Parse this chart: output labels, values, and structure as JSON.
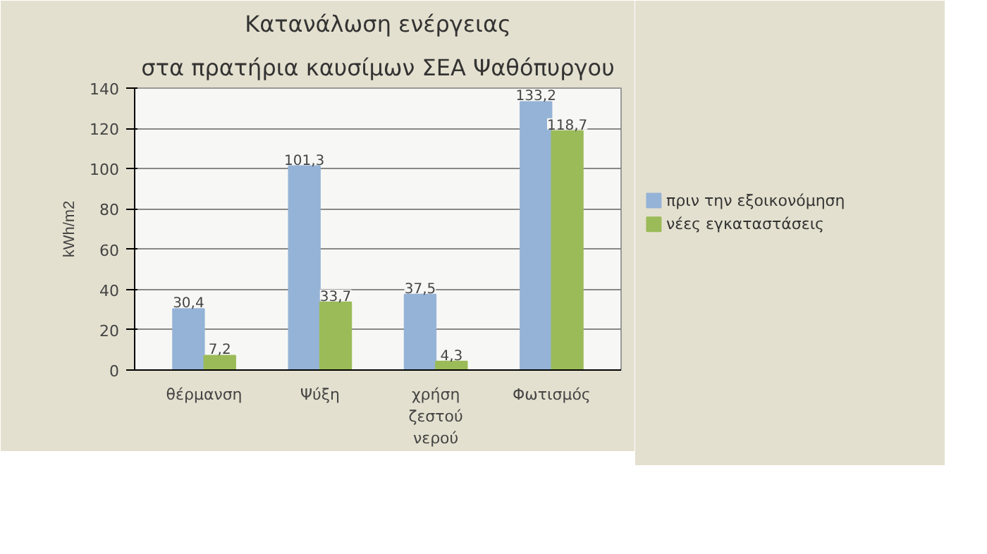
{
  "chart_data": {
    "type": "bar",
    "title": "Κατανάλωση ενέργειας",
    "subtitle": "στα πρατήρια καυσίμων ΣΕΑ Ψαθόπυργου",
    "ylabel": "kWh/m2",
    "categories": [
      "θέρμανση",
      "Ψύξη",
      "χρήση ζεστού νερού",
      "Φωτισμός"
    ],
    "series": [
      {
        "name": "πριν την εξοικονόμηση",
        "color": "#95b3d7",
        "values": [
          30.4,
          101.3,
          37.5,
          133.2
        ]
      },
      {
        "name": "νέες εγκαταστάσεις",
        "color": "#9bbb59",
        "values": [
          7.2,
          33.7,
          4.3,
          118.7
        ]
      }
    ],
    "value_labels": [
      [
        "30,4",
        "101,3",
        "37,5",
        "133,2"
      ],
      [
        "7,2",
        "33,7",
        "4,3",
        "118,7"
      ]
    ],
    "ylim": [
      0,
      140
    ],
    "yticks": [
      0,
      20,
      40,
      60,
      80,
      100,
      120,
      140
    ],
    "grid": "y",
    "legend": "right"
  }
}
